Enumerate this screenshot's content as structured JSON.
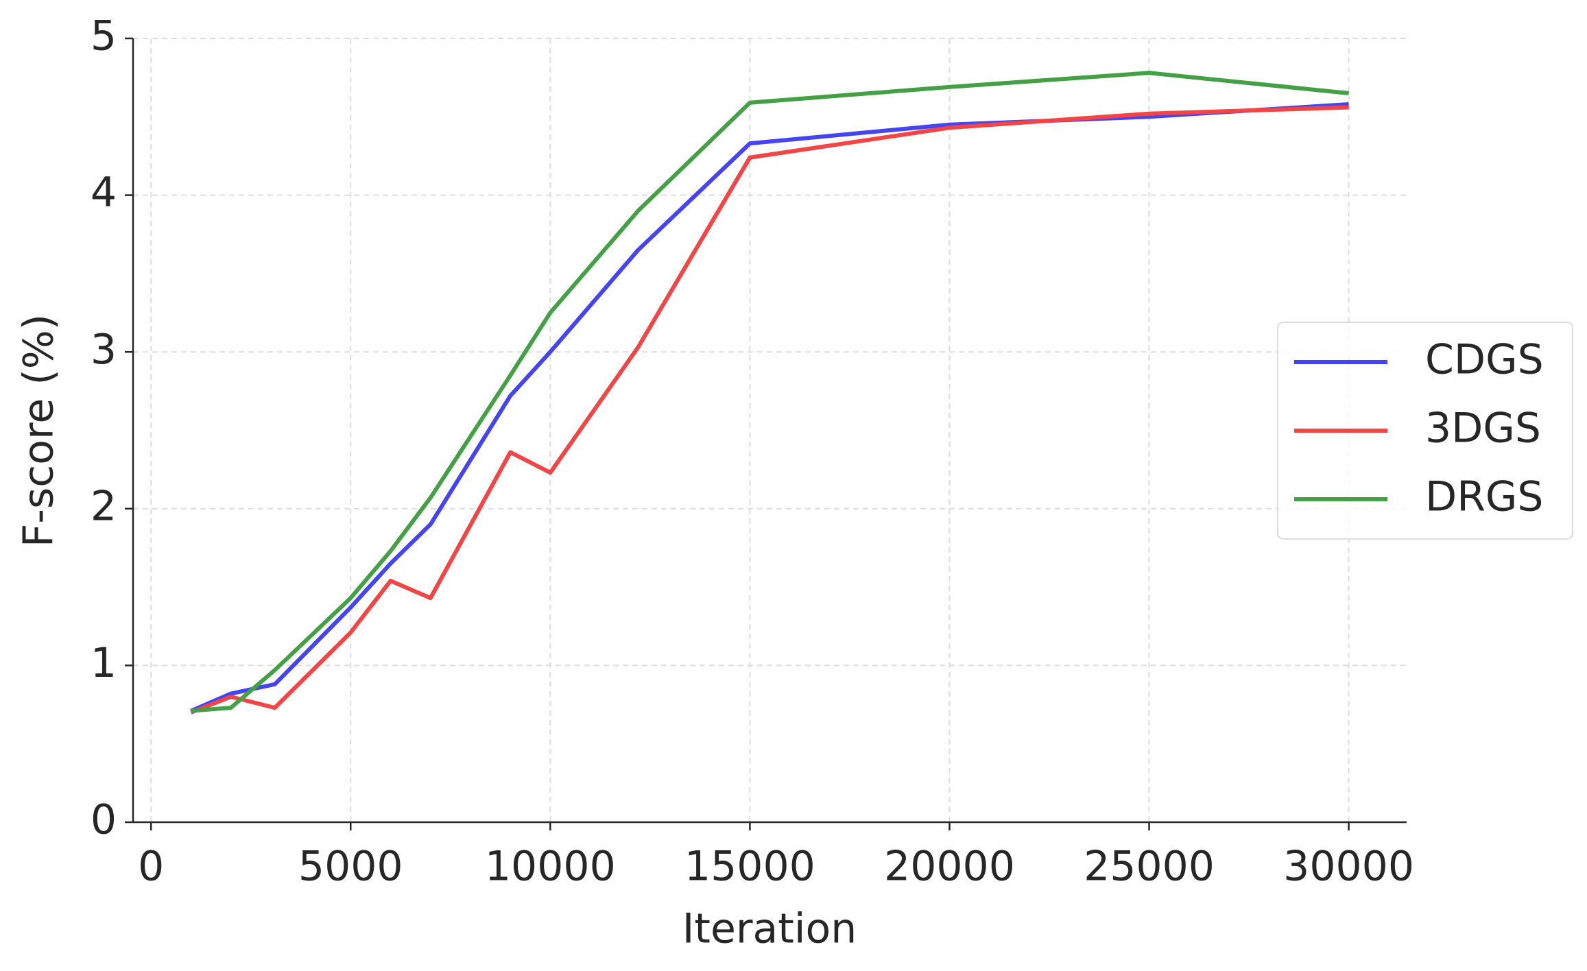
{
  "chart_data": {
    "type": "line",
    "x_label": "Iteration",
    "y_label": "F-score (%)",
    "x": [
      1000,
      2000,
      3100,
      5000,
      6000,
      7000,
      9000,
      10000,
      12200,
      15000,
      20000,
      25000,
      30000
    ],
    "series": [
      {
        "name": "CDGS",
        "color": "#4444f4",
        "values": [
          0.71,
          0.82,
          0.88,
          1.37,
          1.65,
          1.9,
          2.72,
          3.0,
          3.65,
          4.33,
          4.45,
          4.5,
          4.58
        ]
      },
      {
        "name": "3DGS",
        "color": "#f44444",
        "values": [
          0.7,
          0.8,
          0.73,
          1.21,
          1.54,
          1.43,
          2.36,
          2.23,
          3.03,
          4.24,
          4.43,
          4.52,
          4.56
        ]
      },
      {
        "name": "DRGS",
        "color": "#44a044",
        "values": [
          0.71,
          0.73,
          0.97,
          1.43,
          1.73,
          2.07,
          2.85,
          3.25,
          3.9,
          4.59,
          4.69,
          4.78,
          4.65
        ]
      }
    ],
    "xlim": [
      -450,
      31450
    ],
    "xticks": [
      0,
      5000,
      10000,
      15000,
      20000,
      25000,
      30000
    ],
    "ylim": [
      0,
      5
    ],
    "yticks": [
      0,
      1,
      2,
      3,
      4,
      5
    ],
    "grid": true,
    "legend": "right"
  }
}
